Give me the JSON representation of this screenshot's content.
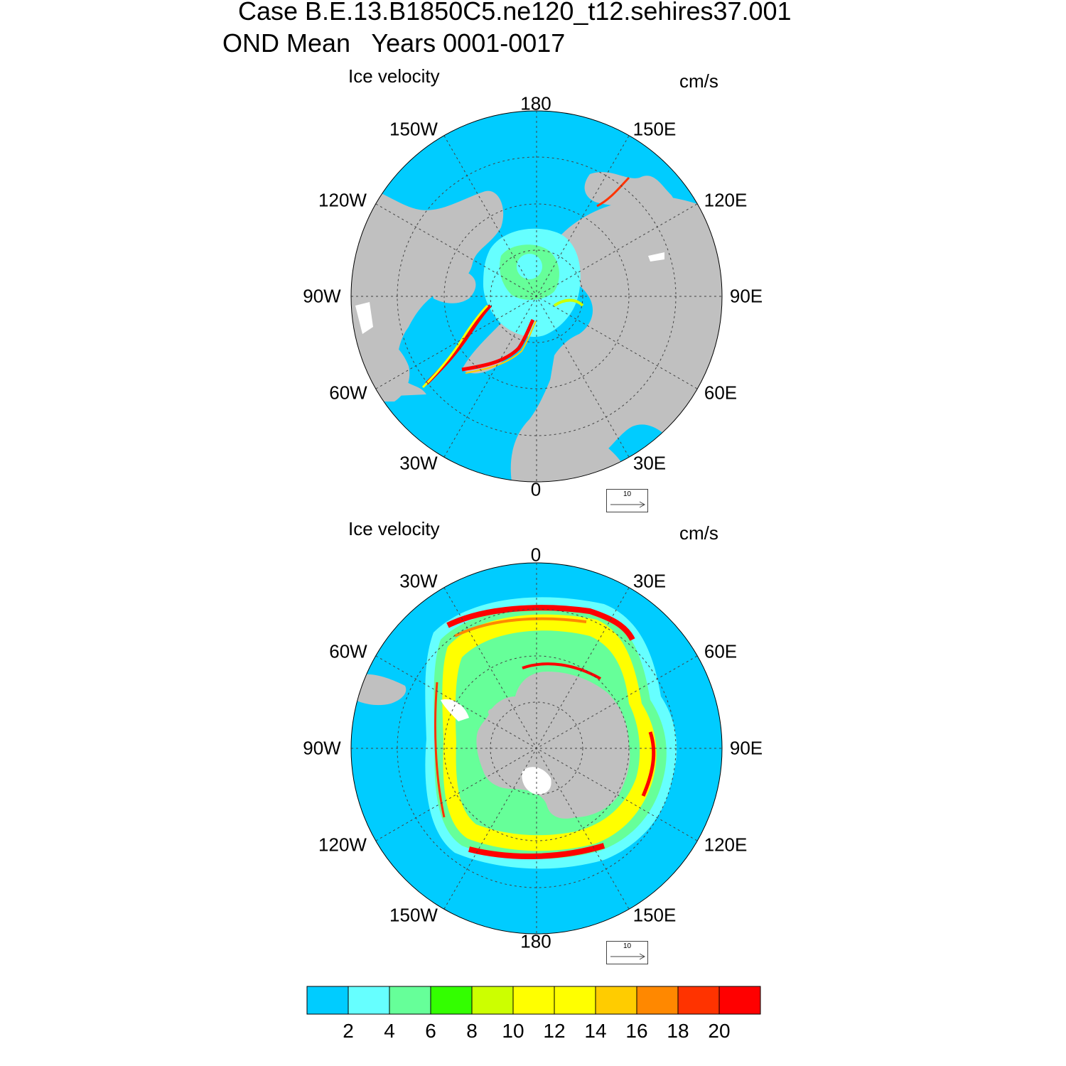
{
  "title": {
    "line1": "Case B.E.13.B1850C5.ne120_t12.sehires37.001",
    "line2": "OND Mean   Years 0001-0017"
  },
  "colors": {
    "ocean_background": "#00ccff",
    "land": "#c0c0c0",
    "white_patches": "#ffffff"
  },
  "north_panel": {
    "label": "Ice velocity",
    "units": "cm/s",
    "hemisphere": "north",
    "lon_labels": {
      "top": "180",
      "upper_left": "150W",
      "upper_right": "150E",
      "mid_upper_left": "120W",
      "mid_upper_right": "120E",
      "left": "90W",
      "right": "90E",
      "mid_lower_left": "60W",
      "mid_lower_right": "60E",
      "lower_left": "30W",
      "lower_right": "30E",
      "bottom": "0"
    },
    "reference_vector": "10"
  },
  "south_panel": {
    "label": "Ice velocity",
    "units": "cm/s",
    "hemisphere": "south",
    "lon_labels": {
      "top": "0",
      "upper_left": "30W",
      "upper_right": "30E",
      "mid_upper_left": "60W",
      "mid_upper_right": "60E",
      "left": "90W",
      "right": "90E",
      "mid_lower_left": "120W",
      "mid_lower_right": "120E",
      "lower_left": "150W",
      "lower_right": "150E",
      "bottom": "180"
    },
    "reference_vector": "10"
  },
  "colorbar": {
    "colors": [
      "#00ccff",
      "#66ffff",
      "#66ff99",
      "#33ff00",
      "#ccff00",
      "#ffff00",
      "#ffff00",
      "#ffcc00",
      "#ff8800",
      "#ff3300",
      "#ff0000"
    ],
    "labels": [
      "2",
      "4",
      "6",
      "8",
      "10",
      "12",
      "14",
      "16",
      "18",
      "20"
    ]
  }
}
